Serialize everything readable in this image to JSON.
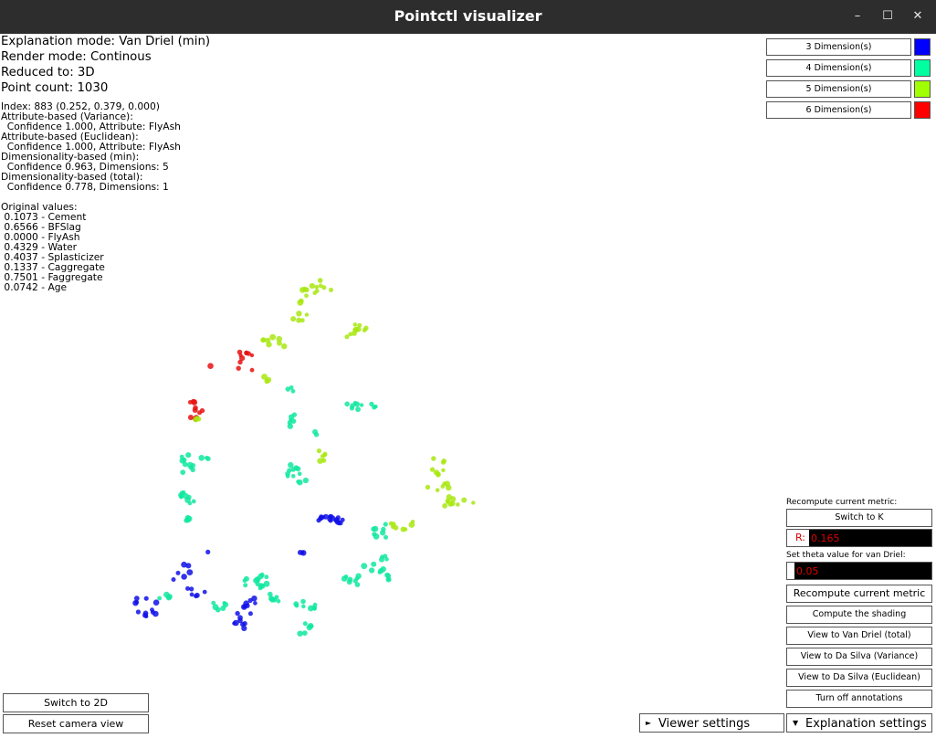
{
  "window": {
    "title": "Pointctl visualizer",
    "controls": {
      "minimize": "–",
      "maximize": "☐",
      "close": "✕"
    }
  },
  "info": {
    "explanation_mode": "Explanation mode: Van Driel (min)",
    "render_mode": "Render mode: Continous",
    "reduced_to": "Reduced to: 3D",
    "point_count": "Point count: 1030",
    "details": [
      "Index: 883 (0.252, 0.379, 0.000)",
      "Attribute-based (Variance):",
      "  Confidence 1.000, Attribute: FlyAsh",
      "Attribute-based (Euclidean):",
      "  Confidence 1.000, Attribute: FlyAsh",
      "Dimensionality-based (min):",
      "  Confidence 0.963, Dimensions: 5",
      "Dimensionality-based (total):",
      "  Confidence 0.778, Dimensions: 1"
    ],
    "original_values_title": "Original values:",
    "original_values": [
      " 0.1073 - Cement",
      " 0.6566 - BFSlag",
      " 0.0000 - FlyAsh",
      " 0.4329 - Water",
      " 0.4037 - Splasticizer",
      " 0.1337 - Caggregate",
      " 0.7501 - Faggregate",
      " 0.0742 - Age"
    ]
  },
  "legend": [
    {
      "label": "3 Dimension(s)",
      "color": "#0000ff"
    },
    {
      "label": "4 Dimension(s)",
      "color": "#00ffa0"
    },
    {
      "label": "5 Dimension(s)",
      "color": "#a0ff00"
    },
    {
      "label": "6 Dimension(s)",
      "color": "#ff0000"
    }
  ],
  "panel": {
    "recompute_label": "Recompute current metric:",
    "switch_k": "Switch to K",
    "r_prefix": "R:",
    "r_value": "0.165",
    "theta_label": "Set theta value for van Driel:",
    "theta_value": "0.05",
    "recompute_button": "Recompute current metric",
    "compute_shading": "Compute the shading",
    "view_van_driel": "View to Van Driel (total)",
    "view_da_silva_var": "View to Da Silva (Variance)",
    "view_da_silva_euc": "View to Da Silva (Euclidean)",
    "turn_off_annotations": "Turn off annotations"
  },
  "bottom": {
    "switch_2d": "Switch to 2D",
    "reset_camera": "Reset camera view",
    "viewer_settings": "Viewer settings",
    "explanation_settings": "Explanation settings",
    "viewer_icon": "right-triangle-icon",
    "explanation_icon": "down-triangle-icon"
  },
  "colors": {
    "blue": "#1010e8",
    "cyan": "#10e8a0",
    "lime": "#a8e810",
    "red": "#e81010"
  }
}
